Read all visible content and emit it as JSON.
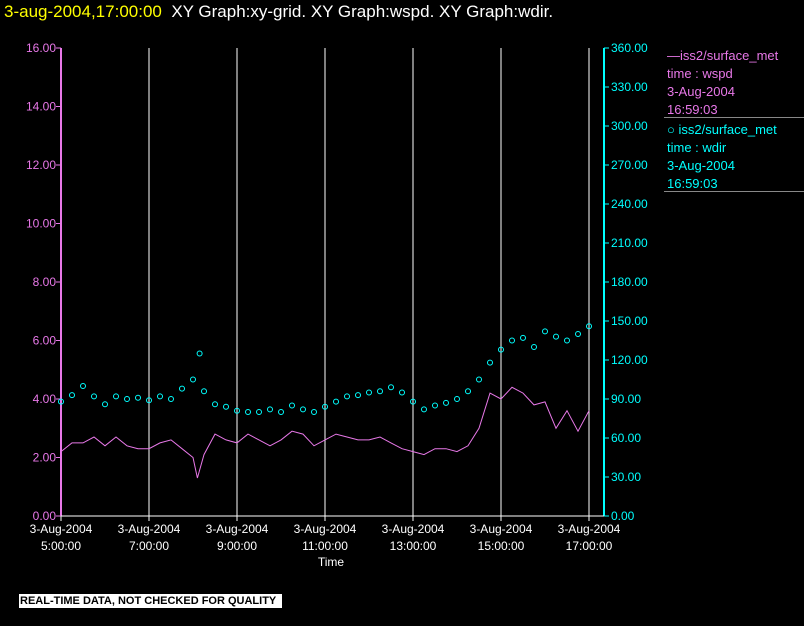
{
  "header": {
    "timestamp": "3-aug-2004,17:00:00",
    "graphs": "XY Graph:xy-grid.  XY Graph:wspd.  XY Graph:wdir."
  },
  "legend": [
    {
      "marker": "line",
      "source": "iss2/surface_met",
      "var": "time : wspd",
      "date": "3-Aug-2004",
      "time": "16:59:03",
      "color": "#e878e8"
    },
    {
      "marker": "circle",
      "source": "iss2/surface_met",
      "var": "time : wdir",
      "date": "3-Aug-2004",
      "time": "16:59:03",
      "color": "#00ffff"
    }
  ],
  "notice": "REAL-TIME DATA, NOT CHECKED FOR QUALITY",
  "chart_data": {
    "type": "line",
    "xlabel": "Time",
    "x_ticks": [
      {
        "date": "3-Aug-2004",
        "time": "5:00:00",
        "hour": 5
      },
      {
        "date": "3-Aug-2004",
        "time": "7:00:00",
        "hour": 7
      },
      {
        "date": "3-Aug-2004",
        "time": "9:00:00",
        "hour": 9
      },
      {
        "date": "3-Aug-2004",
        "time": "11:00:00",
        "hour": 11
      },
      {
        "date": "3-Aug-2004",
        "time": "13:00:00",
        "hour": 13
      },
      {
        "date": "3-Aug-2004",
        "time": "15:00:00",
        "hour": 15
      },
      {
        "date": "3-Aug-2004",
        "time": "17:00:00",
        "hour": 17
      }
    ],
    "xlim": [
      5.0,
      17.0
    ],
    "grid_hours": [
      7,
      9,
      11,
      13,
      15,
      17
    ],
    "y_left": {
      "lim": [
        0,
        16
      ],
      "ticks": [
        "0.00",
        "2.00",
        "4.00",
        "6.00",
        "8.00",
        "10.00",
        "12.00",
        "14.00",
        "16.00"
      ],
      "color": "#e878e8"
    },
    "y_right": {
      "lim": [
        0,
        360
      ],
      "ticks": [
        "0.00",
        "30.00",
        "60.00",
        "90.00",
        "120.00",
        "150.00",
        "180.00",
        "210.00",
        "240.00",
        "270.00",
        "300.00",
        "330.00",
        "360.00"
      ],
      "color": "#00ffff"
    },
    "series": [
      {
        "name": "iss2/surface_met time : wspd",
        "style": "line",
        "axis": "left",
        "color": "#e878e8",
        "points": [
          [
            5.0,
            2.2
          ],
          [
            5.25,
            2.5
          ],
          [
            5.5,
            2.5
          ],
          [
            5.75,
            2.7
          ],
          [
            6.0,
            2.4
          ],
          [
            6.25,
            2.7
          ],
          [
            6.5,
            2.4
          ],
          [
            6.75,
            2.3
          ],
          [
            7.0,
            2.3
          ],
          [
            7.25,
            2.5
          ],
          [
            7.5,
            2.6
          ],
          [
            7.75,
            2.3
          ],
          [
            8.0,
            2.0
          ],
          [
            8.1,
            1.3
          ],
          [
            8.25,
            2.1
          ],
          [
            8.5,
            2.8
          ],
          [
            8.75,
            2.6
          ],
          [
            9.0,
            2.5
          ],
          [
            9.25,
            2.8
          ],
          [
            9.5,
            2.6
          ],
          [
            9.75,
            2.4
          ],
          [
            10.0,
            2.6
          ],
          [
            10.25,
            2.9
          ],
          [
            10.5,
            2.8
          ],
          [
            10.75,
            2.4
          ],
          [
            11.0,
            2.6
          ],
          [
            11.25,
            2.8
          ],
          [
            11.5,
            2.7
          ],
          [
            11.75,
            2.6
          ],
          [
            12.0,
            2.6
          ],
          [
            12.25,
            2.7
          ],
          [
            12.5,
            2.5
          ],
          [
            12.75,
            2.3
          ],
          [
            13.0,
            2.2
          ],
          [
            13.25,
            2.1
          ],
          [
            13.5,
            2.3
          ],
          [
            13.75,
            2.3
          ],
          [
            14.0,
            2.2
          ],
          [
            14.25,
            2.4
          ],
          [
            14.5,
            3.0
          ],
          [
            14.75,
            4.2
          ],
          [
            15.0,
            4.0
          ],
          [
            15.25,
            4.4
          ],
          [
            15.5,
            4.2
          ],
          [
            15.75,
            3.8
          ],
          [
            16.0,
            3.9
          ],
          [
            16.25,
            3.0
          ],
          [
            16.5,
            3.6
          ],
          [
            16.75,
            2.9
          ],
          [
            17.0,
            3.6
          ]
        ]
      },
      {
        "name": "iss2/surface_met time : wdir",
        "style": "circle",
        "axis": "right",
        "color": "#00ffff",
        "points": [
          [
            5.0,
            88
          ],
          [
            5.25,
            93
          ],
          [
            5.5,
            100
          ],
          [
            5.75,
            92
          ],
          [
            6.0,
            86
          ],
          [
            6.25,
            92
          ],
          [
            6.5,
            90
          ],
          [
            6.75,
            91
          ],
          [
            7.0,
            89
          ],
          [
            7.25,
            92
          ],
          [
            7.5,
            90
          ],
          [
            7.75,
            98
          ],
          [
            8.0,
            105
          ],
          [
            8.15,
            125
          ],
          [
            8.25,
            96
          ],
          [
            8.5,
            86
          ],
          [
            8.75,
            84
          ],
          [
            9.0,
            81
          ],
          [
            9.25,
            80
          ],
          [
            9.5,
            80
          ],
          [
            9.75,
            82
          ],
          [
            10.0,
            80
          ],
          [
            10.25,
            85
          ],
          [
            10.5,
            82
          ],
          [
            10.75,
            80
          ],
          [
            11.0,
            84
          ],
          [
            11.25,
            88
          ],
          [
            11.5,
            92
          ],
          [
            11.75,
            93
          ],
          [
            12.0,
            95
          ],
          [
            12.25,
            96
          ],
          [
            12.5,
            99
          ],
          [
            12.75,
            95
          ],
          [
            13.0,
            88
          ],
          [
            13.25,
            82
          ],
          [
            13.5,
            85
          ],
          [
            13.75,
            87
          ],
          [
            14.0,
            90
          ],
          [
            14.25,
            96
          ],
          [
            14.5,
            105
          ],
          [
            14.75,
            118
          ],
          [
            15.0,
            128
          ],
          [
            15.25,
            135
          ],
          [
            15.5,
            137
          ],
          [
            15.75,
            130
          ],
          [
            16.0,
            142
          ],
          [
            16.25,
            138
          ],
          [
            16.5,
            135
          ],
          [
            16.75,
            140
          ],
          [
            17.0,
            146
          ]
        ]
      }
    ],
    "grid": true,
    "legend_position": "right"
  }
}
